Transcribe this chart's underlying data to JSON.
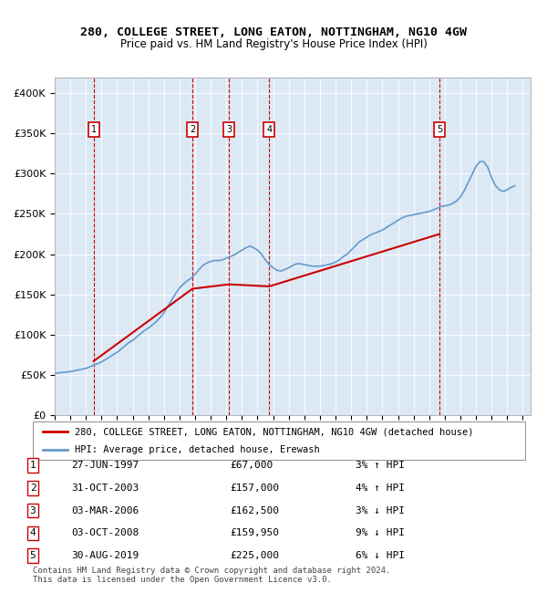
{
  "title1": "280, COLLEGE STREET, LONG EATON, NOTTINGHAM, NG10 4GW",
  "title2": "Price paid vs. HM Land Registry's House Price Index (HPI)",
  "footer": "Contains HM Land Registry data © Crown copyright and database right 2024.\nThis data is licensed under the Open Government Licence v3.0.",
  "legend_line1": "280, COLLEGE STREET, LONG EATON, NOTTINGHAM, NG10 4GW (detached house)",
  "legend_line2": "HPI: Average price, detached house, Erewash",
  "sale_color": "#cc0000",
  "hpi_color": "#6699cc",
  "bg_color": "#dce9f5",
  "plot_bg": "#dce9f5",
  "ylim": [
    0,
    420000
  ],
  "yticks": [
    0,
    50000,
    100000,
    150000,
    200000,
    250000,
    300000,
    350000,
    400000
  ],
  "ytick_labels": [
    "£0",
    "£50K",
    "£100K",
    "£150K",
    "£200K",
    "£250K",
    "£300K",
    "£350K",
    "£400K"
  ],
  "xmin": 1995.0,
  "xmax": 2025.5,
  "sales": [
    {
      "year": 1997.49,
      "price": 67000,
      "label": "1"
    },
    {
      "year": 2003.83,
      "price": 157000,
      "label": "2"
    },
    {
      "year": 2006.17,
      "price": 162500,
      "label": "3"
    },
    {
      "year": 2008.75,
      "price": 159950,
      "label": "4"
    },
    {
      "year": 2019.66,
      "price": 225000,
      "label": "5"
    }
  ],
  "table_rows": [
    {
      "num": "1",
      "date": "27-JUN-1997",
      "price": "£67,000",
      "hpi": "3% ↑ HPI"
    },
    {
      "num": "2",
      "date": "31-OCT-2003",
      "price": "£157,000",
      "hpi": "4% ↑ HPI"
    },
    {
      "num": "3",
      "date": "03-MAR-2006",
      "price": "£162,500",
      "hpi": "3% ↓ HPI"
    },
    {
      "num": "4",
      "date": "03-OCT-2008",
      "price": "£159,950",
      "hpi": "9% ↓ HPI"
    },
    {
      "num": "5",
      "date": "30-AUG-2019",
      "price": "£225,000",
      "hpi": "6% ↓ HPI"
    }
  ],
  "hpi_data": {
    "years": [
      1995.0,
      1995.25,
      1995.5,
      1995.75,
      1996.0,
      1996.25,
      1996.5,
      1996.75,
      1997.0,
      1997.25,
      1997.5,
      1997.75,
      1998.0,
      1998.25,
      1998.5,
      1998.75,
      1999.0,
      1999.25,
      1999.5,
      1999.75,
      2000.0,
      2000.25,
      2000.5,
      2000.75,
      2001.0,
      2001.25,
      2001.5,
      2001.75,
      2002.0,
      2002.25,
      2002.5,
      2002.75,
      2003.0,
      2003.25,
      2003.5,
      2003.75,
      2004.0,
      2004.25,
      2004.5,
      2004.75,
      2005.0,
      2005.25,
      2005.5,
      2005.75,
      2006.0,
      2006.25,
      2006.5,
      2006.75,
      2007.0,
      2007.25,
      2007.5,
      2007.75,
      2008.0,
      2008.25,
      2008.5,
      2008.75,
      2009.0,
      2009.25,
      2009.5,
      2009.75,
      2010.0,
      2010.25,
      2010.5,
      2010.75,
      2011.0,
      2011.25,
      2011.5,
      2011.75,
      2012.0,
      2012.25,
      2012.5,
      2012.75,
      2013.0,
      2013.25,
      2013.5,
      2013.75,
      2014.0,
      2014.25,
      2014.5,
      2014.75,
      2015.0,
      2015.25,
      2015.5,
      2015.75,
      2016.0,
      2016.25,
      2016.5,
      2016.75,
      2017.0,
      2017.25,
      2017.5,
      2017.75,
      2018.0,
      2018.25,
      2018.5,
      2018.75,
      2019.0,
      2019.25,
      2019.5,
      2019.75,
      2020.0,
      2020.25,
      2020.5,
      2020.75,
      2021.0,
      2021.25,
      2021.5,
      2021.75,
      2022.0,
      2022.25,
      2022.5,
      2022.75,
      2023.0,
      2023.25,
      2023.5,
      2023.75,
      2024.0,
      2024.25,
      2024.5
    ],
    "values": [
      52000,
      52500,
      53000,
      53500,
      54000,
      55000,
      56000,
      57000,
      58000,
      60000,
      62000,
      64000,
      66000,
      69000,
      72000,
      75000,
      78000,
      82000,
      86000,
      90000,
      93000,
      97000,
      101000,
      105000,
      108000,
      112000,
      116000,
      121000,
      127000,
      135000,
      143000,
      151000,
      158000,
      163000,
      167000,
      170000,
      175000,
      181000,
      186000,
      189000,
      191000,
      192000,
      192000,
      193000,
      195000,
      197000,
      199000,
      202000,
      205000,
      208000,
      210000,
      208000,
      205000,
      200000,
      193000,
      187000,
      183000,
      180000,
      179000,
      181000,
      183000,
      186000,
      188000,
      188000,
      187000,
      186000,
      185000,
      185000,
      185000,
      186000,
      187000,
      188000,
      190000,
      193000,
      197000,
      200000,
      205000,
      210000,
      215000,
      218000,
      221000,
      224000,
      226000,
      228000,
      230000,
      233000,
      236000,
      239000,
      242000,
      245000,
      247000,
      248000,
      249000,
      250000,
      251000,
      252000,
      253000,
      255000,
      257000,
      259000,
      260000,
      261000,
      263000,
      266000,
      271000,
      279000,
      289000,
      299000,
      309000,
      315000,
      315000,
      308000,
      295000,
      285000,
      280000,
      278000,
      280000,
      283000,
      285000
    ]
  }
}
